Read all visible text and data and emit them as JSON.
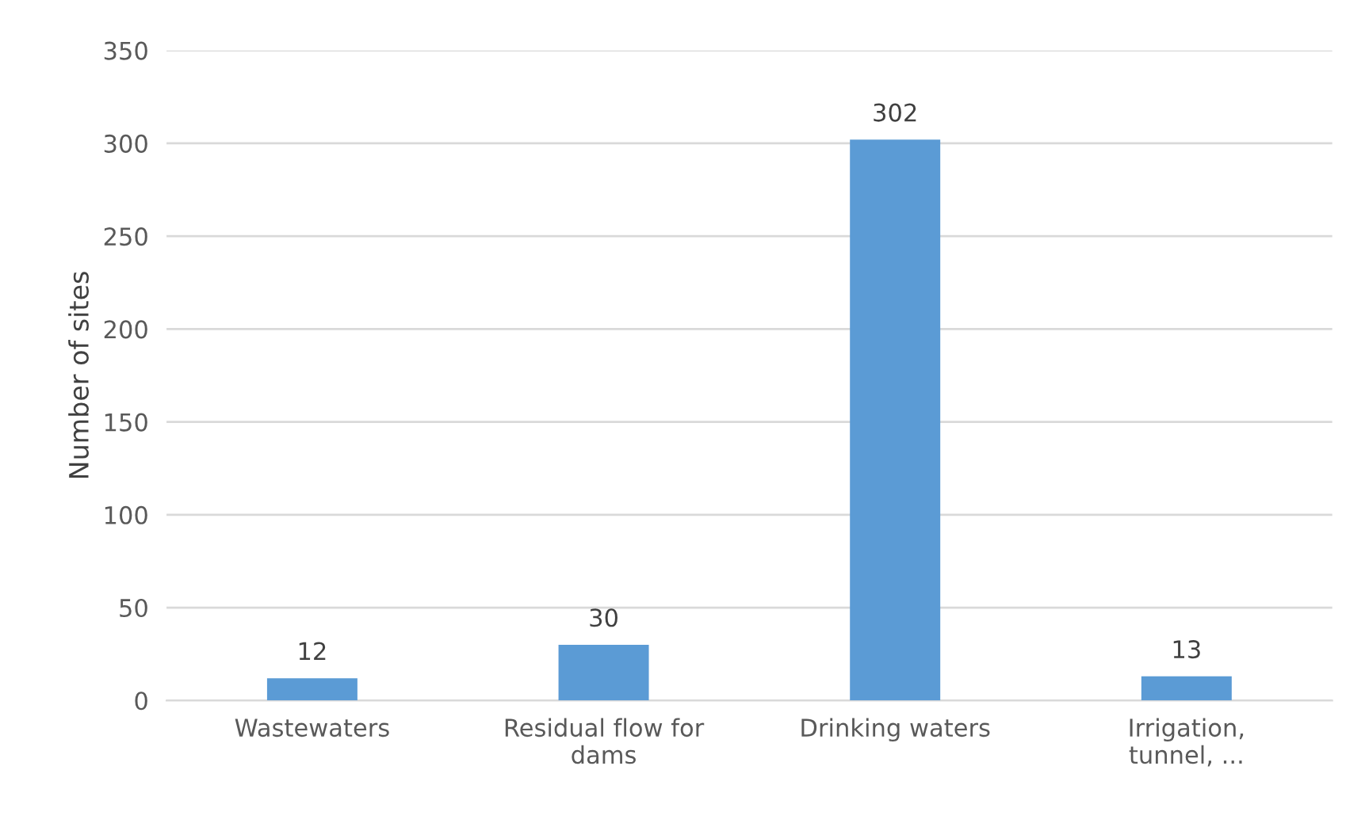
{
  "chart_data": {
    "type": "bar",
    "ylabel": "Number of sites",
    "categories": [
      "Wastewaters",
      "Residual flow for dams",
      "Drinking waters",
      "Irrigation, tunnel, ..."
    ],
    "values": [
      12,
      30,
      302,
      13
    ],
    "color": "#5b9bd5",
    "data_labels": true,
    "ylim": [
      0,
      350
    ],
    "yticks": [
      0,
      50,
      100,
      150,
      200,
      250,
      300,
      350
    ],
    "grid": "y",
    "legend": false
  }
}
